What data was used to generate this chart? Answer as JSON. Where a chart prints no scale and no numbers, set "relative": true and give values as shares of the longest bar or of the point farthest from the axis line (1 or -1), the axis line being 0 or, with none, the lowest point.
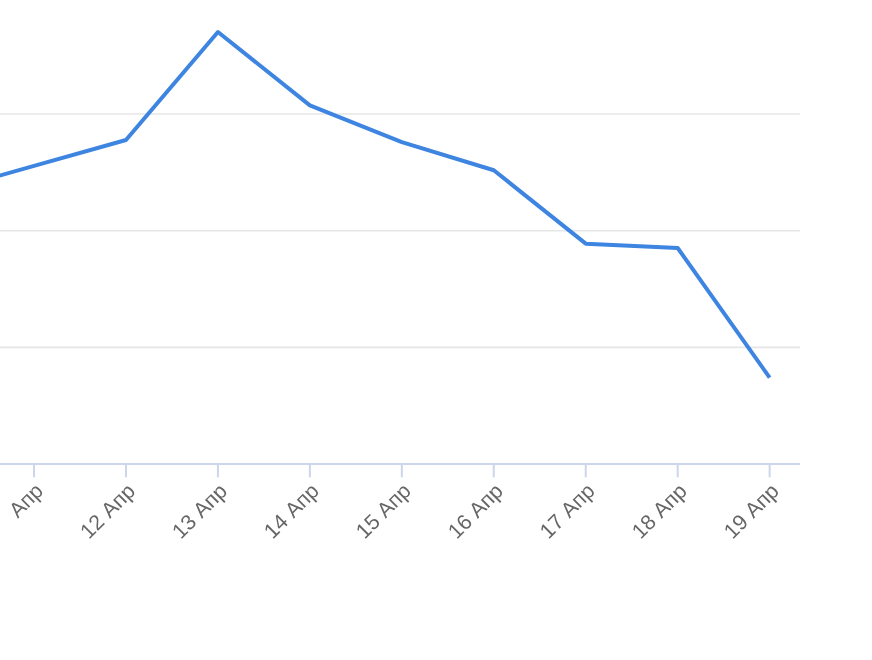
{
  "chart_data": {
    "type": "line",
    "relative": true,
    "categories": [
      null,
      "Апр",
      "12 Апр",
      "13 Апр",
      "14 Апр",
      "15 Апр",
      "16 Апр",
      "17 Апр",
      "18 Апр",
      "19 Апр"
    ],
    "series": [
      {
        "color": "#3d85e0",
        "values": [
          0.63,
          0.69,
          0.75,
          1,
          0.83,
          0.745,
          0.68,
          0.51,
          0.5,
          0.2
        ]
      }
    ],
    "grid": "y",
    "marker": "none",
    "line_style": "solid"
  }
}
